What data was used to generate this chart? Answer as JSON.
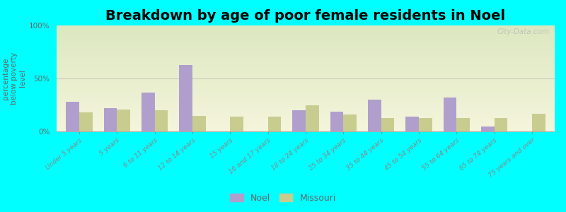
{
  "title": "Breakdown by age of poor female residents in Noel",
  "ylabel": "percentage\nbelow poverty\nlevel",
  "categories": [
    "Under 5 years",
    "5 years",
    "6 to 11 years",
    "12 to 14 years",
    "15 years",
    "16 and 17 years",
    "18 to 24 years",
    "25 to 34 years",
    "35 to 44 years",
    "45 to 54 years",
    "55 to 64 years",
    "65 to 74 years",
    "75 years and over"
  ],
  "noel_values": [
    28,
    22,
    37,
    63,
    0,
    0,
    20,
    19,
    30,
    14,
    32,
    5,
    0
  ],
  "missouri_values": [
    18,
    21,
    20,
    15,
    14,
    14,
    25,
    16,
    13,
    13,
    13,
    13,
    17
  ],
  "noel_color": "#b09fcc",
  "missouri_color": "#c8cc8f",
  "background_color": "#00ffff",
  "grad_top_color": "#dce8c0",
  "grad_bottom_color": "#f5f5dc",
  "ylim": [
    0,
    100
  ],
  "yticks": [
    0,
    50,
    100
  ],
  "ytick_labels": [
    "0%",
    "50%",
    "100%"
  ],
  "bar_width": 0.35,
  "title_fontsize": 14,
  "legend_labels": [
    "Noel",
    "Missouri"
  ],
  "watermark": "City-Data.com",
  "spine_color": "#aaaaaa",
  "tick_color": "#888888",
  "label_color": "#666666"
}
